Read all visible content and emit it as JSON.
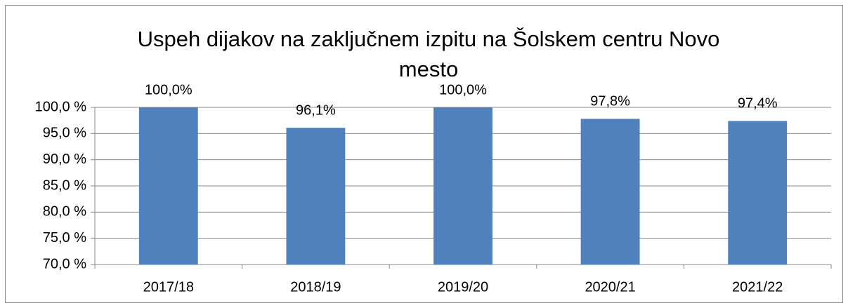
{
  "chart_data": {
    "type": "bar",
    "title": "Uspeh dijakov na zaključnem izpitu na Šolskem centru Novo mesto",
    "categories": [
      "2017/18",
      "2018/19",
      "2019/20",
      "2020/21",
      "2021/22"
    ],
    "values": [
      100.0,
      96.1,
      100.0,
      97.8,
      97.4
    ],
    "value_labels": [
      "100,0%",
      "96,1%",
      "100,0%",
      "97,8%",
      "97,4%"
    ],
    "color": "#4f81bd",
    "ylim": [
      70,
      100
    ],
    "yticks": [
      {
        "value": 70,
        "label": "70,0 %"
      },
      {
        "value": 75,
        "label": "75,0 %"
      },
      {
        "value": 80,
        "label": "80,0 %"
      },
      {
        "value": 85,
        "label": "85,0 %"
      },
      {
        "value": 90,
        "label": "90,0 %"
      },
      {
        "value": 95,
        "label": "95,0 %"
      },
      {
        "value": 100,
        "label": "100,0 %"
      }
    ],
    "grid": true
  }
}
